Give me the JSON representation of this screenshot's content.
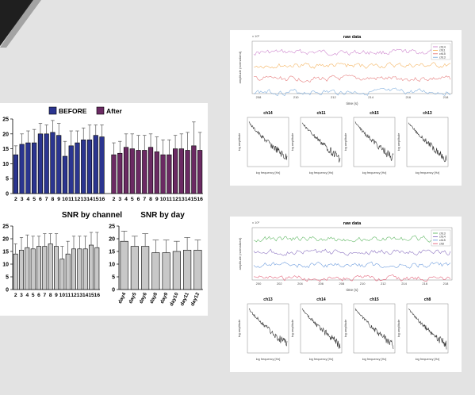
{
  "legend": {
    "before_label": "BEFORE",
    "after_label": "After"
  },
  "colors": {
    "before": "#2b3590",
    "after": "#6b2a63",
    "gray": "#c8c8c8",
    "decor_dark": "#1f1f1f"
  },
  "top_chart": {
    "ylabel": "SNR",
    "ylim": [
      0,
      25
    ],
    "yticks": [
      "0",
      "5",
      "10",
      "15",
      "20",
      "25"
    ]
  },
  "channel_chart": {
    "title": "SNR by channel",
    "ylabel": "SNR",
    "ylim": [
      0,
      25
    ],
    "yticks": [
      "0",
      "5",
      "10",
      "15",
      "20",
      "25"
    ]
  },
  "day_chart": {
    "title": "SNR by day",
    "ylim": [
      0,
      25
    ],
    "yticks": [
      "0",
      "5",
      "10",
      "15",
      "20",
      "25"
    ]
  },
  "raw_panels": [
    {
      "title": "raw data",
      "ylabel": "amplitude (normalized)",
      "xlabel": "time (s)",
      "yexp": "x 10³",
      "xticks": [
        "208",
        "210",
        "212",
        "214",
        "216",
        "218"
      ],
      "legend": [
        "ch14",
        "ch11",
        "ch15",
        "ch13"
      ],
      "trace_colors": [
        "#c774c7",
        "#f3a94a",
        "#e36a6a",
        "#6fa3d9"
      ],
      "psd": [
        {
          "title": "ch14",
          "xlabel": "log frequency [Hz]",
          "ylabel": "log amplitude"
        },
        {
          "title": "ch11",
          "xlabel": "log frequency [Hz]",
          "ylabel": "log amplitude"
        },
        {
          "title": "ch15",
          "xlabel": "log frequency [Hz]",
          "ylabel": "log amplitude"
        },
        {
          "title": "ch13",
          "xlabel": "log frequency [Hz]",
          "ylabel": "log amplitude"
        }
      ]
    },
    {
      "title": "raw data",
      "ylabel": "amplitude (normalized)",
      "xlabel": "time (s)",
      "yexp": "x 10³",
      "xticks": [
        "200",
        "202",
        "204",
        "206",
        "208",
        "210",
        "212",
        "214",
        "216",
        "218"
      ],
      "legend": [
        "ch13",
        "ch14",
        "ch15",
        "ch8"
      ],
      "trace_colors": [
        "#4caf50",
        "#7b5fb8",
        "#5b8fd9",
        "#e0506a"
      ],
      "psd": [
        {
          "title": "ch13",
          "xlabel": "log frequency [Hz]",
          "ylabel": "log amplitude"
        },
        {
          "title": "ch14",
          "xlabel": "log frequency [Hz]",
          "ylabel": "log amplitude"
        },
        {
          "title": "ch15",
          "xlabel": "log frequency [Hz]",
          "ylabel": "log amplitude"
        },
        {
          "title": "ch8",
          "xlabel": "log frequency [Hz]",
          "ylabel": "log amplitude"
        }
      ]
    }
  ],
  "chart_data": [
    {
      "type": "bar",
      "ylabel": "SNR",
      "ylim": [
        0,
        25
      ],
      "grid": false,
      "legend_placement": "top",
      "series": [
        {
          "name": "BEFORE",
          "categories": [
            "2",
            "3",
            "4",
            "5",
            "6",
            "7",
            "8",
            "9",
            "10",
            "11",
            "12",
            "13",
            "14",
            "15",
            "16"
          ],
          "values": [
            13,
            16.5,
            17,
            17,
            20,
            20,
            20.5,
            19.5,
            12.5,
            16,
            17,
            18,
            18,
            19.5,
            19
          ],
          "errors": [
            3,
            3.5,
            4,
            4.5,
            3.5,
            3,
            4,
            4,
            5,
            5,
            4,
            4,
            5,
            3.5,
            4
          ]
        },
        {
          "name": "After",
          "categories": [
            "2",
            "3",
            "4",
            "5",
            "6",
            "7",
            "8",
            "9",
            "10",
            "11",
            "12",
            "13",
            "14",
            "15",
            "16"
          ],
          "values": [
            13,
            13.5,
            15.5,
            15,
            14.5,
            14.5,
            15.5,
            14,
            13,
            13,
            15,
            15,
            14.5,
            16,
            14.5
          ],
          "errors": [
            4,
            4,
            4.5,
            5,
            5,
            5,
            4.5,
            5,
            5,
            5,
            4.5,
            5,
            6,
            8,
            6
          ]
        }
      ]
    },
    {
      "type": "bar",
      "title": "SNR by channel",
      "ylabel": "SNR",
      "ylim": [
        0,
        25
      ],
      "categories": [
        "2",
        "3",
        "4",
        "5",
        "6",
        "7",
        "8",
        "9",
        "10",
        "11",
        "12",
        "13",
        "14",
        "15",
        "16"
      ],
      "values": [
        14,
        15.5,
        16.5,
        16,
        17,
        17,
        18,
        17,
        12,
        14,
        16,
        16,
        16,
        17.5,
        16.5
      ],
      "errors": [
        4,
        5,
        5,
        5,
        4,
        5,
        4,
        5,
        5,
        5,
        5,
        5,
        5,
        5,
        6
      ]
    },
    {
      "type": "bar",
      "title": "SNR by day",
      "ylim": [
        0,
        25
      ],
      "categories": [
        "day4",
        "day5",
        "day6",
        "day8",
        "day9",
        "day10",
        "day11",
        "day12"
      ],
      "values": [
        19,
        17,
        17,
        14.5,
        14.5,
        15,
        15.5,
        15.5
      ],
      "errors": [
        4,
        4,
        5,
        5,
        5,
        4,
        5,
        4
      ]
    }
  ]
}
